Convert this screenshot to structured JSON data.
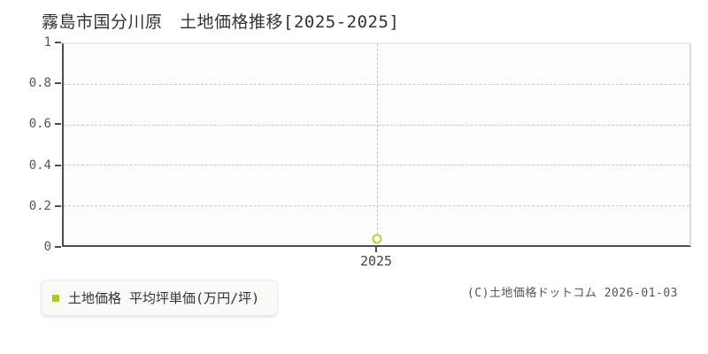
{
  "title": "霧島市国分川原　土地価格推移[2025-2025]",
  "chart_data": {
    "type": "scatter",
    "title": "霧島市国分川原 土地価格推移[2025-2025]",
    "x": [
      "2025"
    ],
    "series": [
      {
        "name": "土地価格 平均坪単価(万円/坪)",
        "values": [
          0.03
        ]
      }
    ],
    "xlabel": "",
    "ylabel": "",
    "ylim": [
      0,
      1
    ],
    "yticks": [
      0,
      0.2,
      0.4,
      0.6,
      0.8,
      1
    ],
    "xticks": [
      "2025"
    ],
    "grid": "dashed",
    "legend_position": "bottom-left-outside",
    "marker_color": "#b5d333",
    "plot_background": "#fcfcfc"
  },
  "legend": {
    "marker_color": "#a8d018",
    "label": "土地価格 平均坪単価(万円/坪)"
  },
  "footer": {
    "copyright": "(C)土地価格ドットコム 2026-01-03"
  }
}
